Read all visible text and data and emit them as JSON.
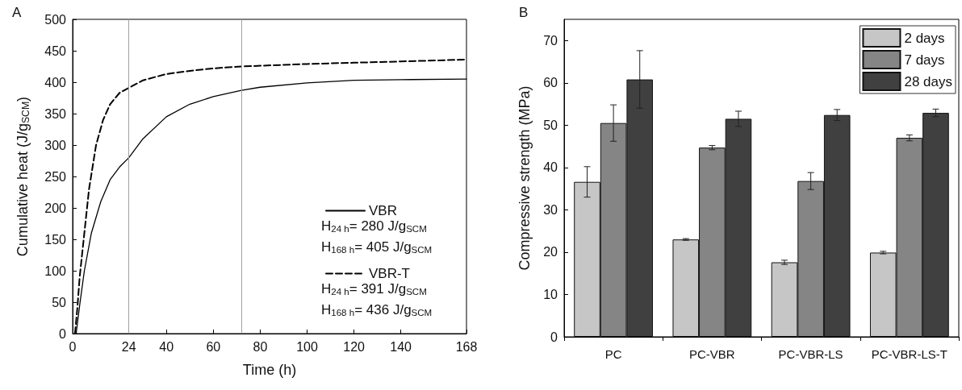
{
  "chart_data": [
    {
      "type": "line",
      "title": "A",
      "xlabel": "Time (h)",
      "ylabel": "Cumulative heat (J/g$_{SCM}$)",
      "xlim": [
        0,
        168
      ],
      "xticks": [
        0,
        24,
        40,
        60,
        80,
        100,
        120,
        140,
        168
      ],
      "ylim": [
        0,
        500
      ],
      "yticks": [
        0,
        50,
        100,
        150,
        200,
        250,
        300,
        350,
        400,
        450,
        500
      ],
      "grid": false,
      "legend": "bottom right",
      "marker": "none",
      "series": [
        {
          "name": "VBR",
          "color": "#000000",
          "line_style": "solid",
          "x": [
            1.5,
            3,
            5,
            8,
            12,
            16,
            20,
            24,
            30,
            40,
            50,
            60,
            72,
            80,
            100,
            120,
            140,
            168
          ],
          "values": [
            0,
            45,
            100,
            160,
            210,
            245,
            265,
            280,
            310,
            345,
            365,
            377,
            387,
            392,
            399,
            403,
            404,
            405
          ]
        },
        {
          "name": "VBR-T",
          "color": "#000000",
          "line_style": "dashed",
          "x": [
            1,
            2,
            3,
            5,
            7,
            10,
            13,
            16,
            20,
            24,
            30,
            40,
            50,
            60,
            72,
            100,
            120,
            140,
            168
          ],
          "values": [
            0,
            40,
            90,
            160,
            230,
            300,
            340,
            365,
            383,
            391,
            403,
            413,
            418,
            422,
            425,
            429,
            431,
            433,
            436
          ]
        }
      ],
      "ref_lines": [
        {
          "axis": "x",
          "value": 24,
          "color": "#a0a0a0"
        },
        {
          "axis": "x",
          "value": 72,
          "color": "#a0a0a0"
        }
      ],
      "annotations": [
        "H$_{24 h}$= 280 J/g$_{SCM}$",
        "H$_{168 h}$= 405 J/g$_{SCM}$",
        "H$_{24 h}$= 391 J/g$_{SCM}$",
        "H$_{168 h}$= 436 J/g$_{SCM}$"
      ]
    },
    {
      "type": "bar",
      "title": "B",
      "ylabel": "Compressive strength (MPa)",
      "categories": [
        "PC",
        "PC-VBR",
        "PC-VBR-LS",
        "PC-VBR-LS-T"
      ],
      "ylim": [
        0,
        75
      ],
      "yticks": [
        0,
        10,
        20,
        30,
        40,
        50,
        60,
        70
      ],
      "grid": false,
      "legend": "top right",
      "series": [
        {
          "name": "2 days",
          "color": "#c6c6c6",
          "values": [
            36.6,
            23.0,
            17.6,
            19.9
          ],
          "errors": [
            3.6,
            0.2,
            0.5,
            0.3
          ]
        },
        {
          "name": "7 days",
          "color": "#858585",
          "values": [
            50.5,
            44.7,
            36.8,
            47.0
          ],
          "errors": [
            4.3,
            0.5,
            2.0,
            0.7
          ]
        },
        {
          "name": "28 days",
          "color": "#404040",
          "values": [
            60.8,
            51.5,
            52.4,
            52.9
          ],
          "errors": [
            6.8,
            1.8,
            1.3,
            0.9
          ]
        }
      ]
    }
  ]
}
